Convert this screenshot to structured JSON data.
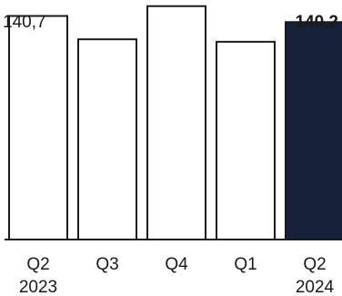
{
  "chart_data": {
    "type": "bar",
    "categories": [
      "Q2",
      "Q3",
      "Q4",
      "Q1",
      "Q2"
    ],
    "category_years": [
      "2023",
      "",
      "",
      "",
      "2024"
    ],
    "values": [
      140.7,
      138.8,
      141.5,
      138.6,
      140.2
    ],
    "data_labels": [
      "140,7",
      "",
      "",
      "",
      "140,2"
    ],
    "highlight_index": 4,
    "colors": {
      "bar_fill": "#ffffff",
      "bar_stroke": "#1a1a1a",
      "highlight_fill": "#18213a",
      "axis": "#1a1a1a",
      "text": "#1a1a1a"
    },
    "ylim": [
      122.5,
      142
    ],
    "grid": false,
    "legend": "none"
  }
}
